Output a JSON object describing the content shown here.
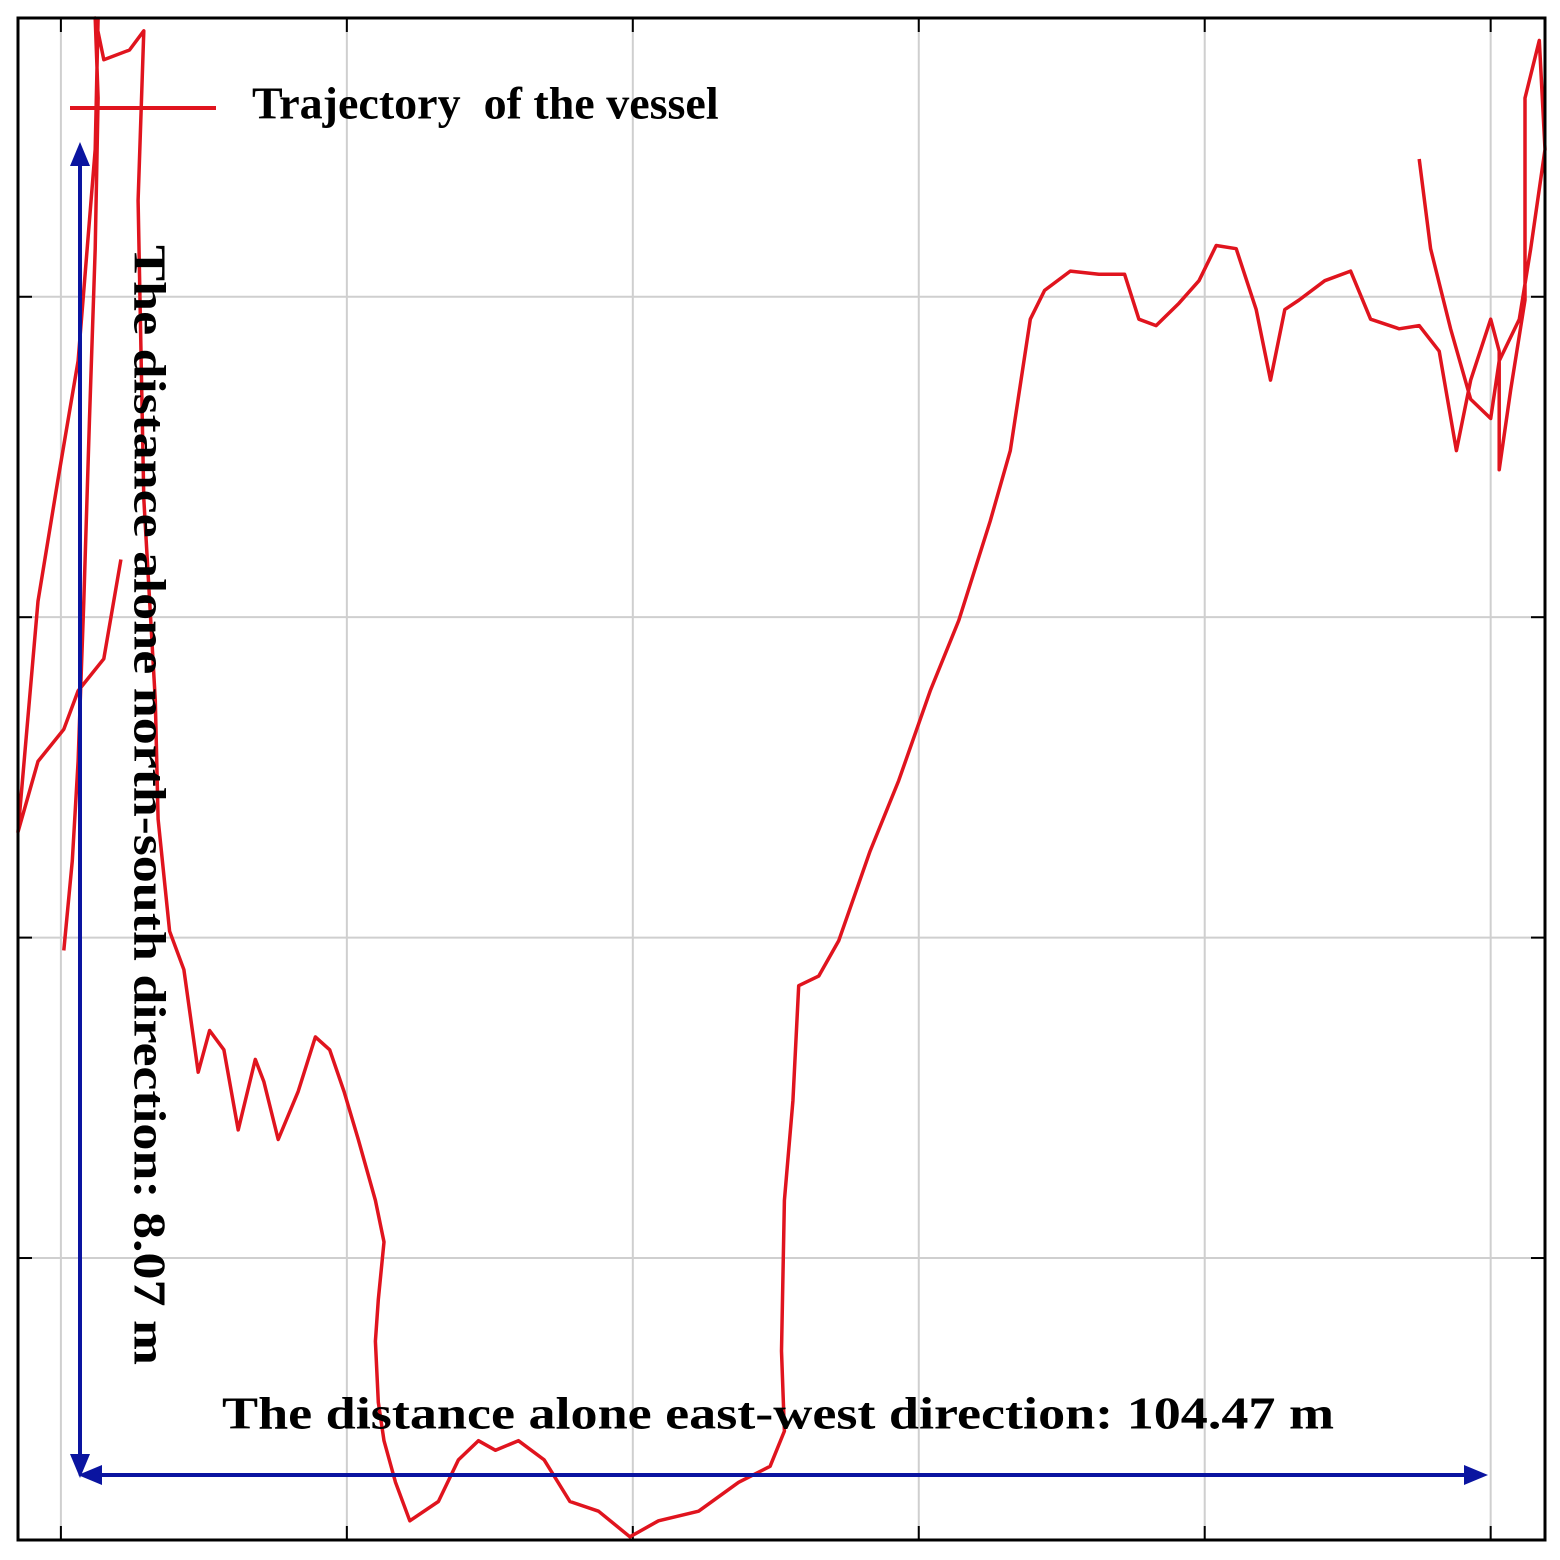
{
  "chart_data": {
    "type": "line",
    "xlim": [
      -15,
      519
    ],
    "ylim": [
      -88,
      387
    ],
    "xticks": [
      0,
      100,
      200,
      300,
      400,
      500
    ],
    "yticks": [
      0,
      100,
      200,
      300
    ],
    "grid": true,
    "legend": "top-left",
    "annotations": [
      "The distance alone north-south direction: 8.07 m",
      "The distance alone east-west direction: 104.47 m"
    ],
    "series": [
      {
        "name": "Trajectory  of the vessel",
        "color": "#e0141e",
        "x": [
          1,
          4,
          6,
          8,
          10,
          12,
          13,
          12,
          15,
          24,
          29,
          27,
          29,
          33,
          34,
          38,
          43,
          48,
          52,
          57,
          62,
          68,
          71,
          76,
          83,
          89,
          94,
          99,
          104,
          110,
          113,
          111,
          110,
          111,
          113,
          117,
          122,
          132,
          139,
          146,
          152,
          160,
          169,
          178,
          188,
          199,
          209,
          223,
          237,
          248,
          253,
          252,
          253,
          256,
          258,
          265,
          272,
          283,
          293,
          304,
          314,
          325,
          332,
          339,
          344,
          353,
          363,
          372,
          377,
          383,
          391,
          398,
          404,
          411,
          418,
          423,
          428,
          433,
          442,
          451,
          458,
          468,
          475,
          482,
          488,
          493,
          500,
          503,
          503,
          507,
          512,
          512,
          517,
          519,
          514,
          510,
          503,
          500,
          493,
          486,
          479,
          475,
          null,
          13,
          12,
          6,
          -1,
          -8,
          -11,
          -15,
          -8,
          1,
          6,
          15,
          21
        ],
        "values": [
          96,
          124,
          155,
          205,
          262,
          315,
          362,
          387,
          374,
          377,
          383,
          330,
          237,
          174,
          137,
          102,
          90,
          58,
          71,
          65,
          40,
          62,
          55,
          37,
          52,
          69,
          65,
          52,
          37,
          18,
          5,
          -13,
          -26,
          -45,
          -57,
          -70,
          -82,
          -76,
          -63,
          -57,
          -60,
          -57,
          -63,
          -76,
          -79,
          -87,
          -82,
          -79,
          -70,
          -65,
          -54,
          -29,
          18,
          49,
          85,
          88,
          99,
          127,
          149,
          177,
          199,
          230,
          252,
          293,
          302,
          308,
          307,
          307,
          293,
          291,
          298,
          305,
          316,
          315,
          296,
          274,
          296,
          299,
          305,
          308,
          293,
          290,
          291,
          283,
          252,
          274,
          293,
          283,
          246,
          271,
          299,
          362,
          380,
          346,
          315,
          293,
          280,
          262,
          268,
          290,
          315,
          343,
          null,
          387,
          346,
          280,
          243,
          205,
          174,
          133,
          155,
          165,
          177,
          187,
          218
        ]
      }
    ]
  }
}
